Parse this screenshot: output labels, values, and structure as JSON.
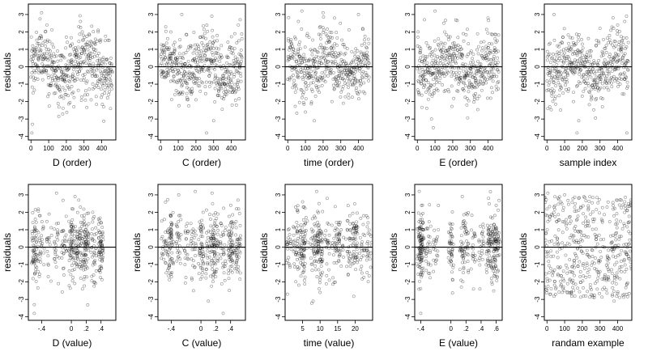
{
  "chart_data": [
    {
      "type": "scatter",
      "xlabel": "D (order)",
      "ylabel": "residuals",
      "xlim": [
        -15,
        480
      ],
      "ylim": [
        -4.2,
        3.6
      ],
      "xticks": [
        0,
        100,
        200,
        300,
        400
      ],
      "yticks": [
        -4,
        -3,
        -2,
        -1,
        0,
        1,
        2,
        3
      ],
      "hline": 0,
      "n": 460,
      "pattern": "order",
      "y_range": [
        -3.8,
        3.2
      ],
      "x": [
        5,
        8,
        12,
        60,
        90,
        120,
        150,
        180,
        200,
        230,
        250,
        270,
        280,
        290,
        300,
        320,
        330,
        340,
        360,
        380,
        400,
        420,
        440,
        450
      ],
      "y": [
        -3.8,
        -3.3,
        -1.5,
        3.1,
        2.4,
        1.3,
        0.9,
        -1.2,
        1.7,
        0.4,
        -0.8,
        2.3,
        2.6,
        2.0,
        0.3,
        -1.6,
        1.2,
        -1.9,
        0.6,
        2.1,
        -0.5,
        1.5,
        -1.1,
        -2.4
      ]
    },
    {
      "type": "scatter",
      "xlabel": "C (order)",
      "ylabel": "residuals",
      "xlim": [
        -15,
        480
      ],
      "ylim": [
        -4.2,
        3.6
      ],
      "xticks": [
        0,
        100,
        200,
        300,
        400
      ],
      "yticks": [
        -4,
        -3,
        -2,
        -1,
        0,
        1,
        2,
        3
      ],
      "hline": 0,
      "n": 460,
      "pattern": "order",
      "y_range": [
        -3.8,
        3.2
      ],
      "x": [
        5,
        20,
        80,
        120,
        150,
        200,
        230,
        260,
        290,
        300,
        320,
        340,
        360,
        400,
        420,
        440,
        450,
        460
      ],
      "y": [
        0.2,
        -0.6,
        1.4,
        3.0,
        -1.2,
        -1.9,
        0.9,
        -3.8,
        2.9,
        -3.1,
        1.8,
        0.5,
        -1.7,
        0.8,
        1.9,
        2.4,
        2.7,
        1.6
      ]
    },
    {
      "type": "scatter",
      "xlabel": "time (order)",
      "ylabel": "residuals",
      "xlim": [
        -15,
        480
      ],
      "ylim": [
        -4.2,
        3.6
      ],
      "xticks": [
        0,
        100,
        200,
        300,
        400
      ],
      "yticks": [
        -4,
        -3,
        -2,
        -1,
        0,
        1,
        2,
        3
      ],
      "hline": 0,
      "n": 460,
      "pattern": "order",
      "y_range": [
        -3.8,
        3.2
      ],
      "x": [
        20,
        40,
        60,
        80,
        100,
        150,
        180,
        200,
        250,
        280,
        300,
        320,
        350,
        380,
        400,
        420,
        440,
        460
      ],
      "y": [
        -0.6,
        1.7,
        2.6,
        3.2,
        -2.6,
        -3.1,
        1.1,
        3.1,
        -2.0,
        -1.1,
        0.2,
        0.7,
        -0.3,
        0.6,
        3.0,
        -0.4,
        0.4,
        -0.6
      ]
    },
    {
      "type": "scatter",
      "xlabel": "E (order)",
      "ylabel": "residuals",
      "xlim": [
        -15,
        480
      ],
      "ylim": [
        -4.2,
        3.6
      ],
      "xticks": [
        0,
        100,
        200,
        300,
        400
      ],
      "yticks": [
        -4,
        -3,
        -2,
        -1,
        0,
        1,
        2,
        3
      ],
      "hline": 0,
      "n": 460,
      "pattern": "order",
      "y_range": [
        -3.8,
        3.2
      ],
      "x": [
        10,
        40,
        60,
        80,
        90,
        100,
        150,
        200,
        230,
        260,
        280,
        300,
        330,
        360,
        400,
        420,
        440,
        460
      ],
      "y": [
        -1.6,
        2.7,
        1.2,
        -3.0,
        -3.5,
        3.2,
        2.5,
        0.3,
        -1.4,
        1.9,
        -2.2,
        0.8,
        -0.9,
        1.4,
        2.8,
        -1.2,
        1.6,
        -0.3
      ]
    },
    {
      "type": "scatter",
      "xlabel": "sample index",
      "ylabel": "residuals",
      "xlim": [
        -15,
        480
      ],
      "ylim": [
        -4.2,
        3.6
      ],
      "xticks": [
        0,
        100,
        200,
        300,
        400
      ],
      "yticks": [
        -4,
        -3,
        -2,
        -1,
        0,
        1,
        2,
        3
      ],
      "hline": 0,
      "n": 460,
      "pattern": "order",
      "y_range": [
        -3.8,
        3.2
      ],
      "x": [
        5,
        40,
        90,
        120,
        150,
        170,
        180,
        200,
        250,
        280,
        300,
        340,
        380,
        400,
        420,
        440,
        450,
        460
      ],
      "y": [
        -2.4,
        3.0,
        1.7,
        -1.4,
        -2.0,
        -3.8,
        -3.1,
        1.3,
        0.9,
        -0.6,
        2.2,
        -1.2,
        0.5,
        2.4,
        1.1,
        2.6,
        2.9,
        0.3
      ]
    },
    {
      "type": "scatter",
      "xlabel": "D (value)",
      "ylabel": "residuals",
      "xlim": [
        -0.58,
        0.6
      ],
      "ylim": [
        -4.2,
        3.6
      ],
      "xticks": [
        -0.4,
        0.0,
        0.2,
        0.4
      ],
      "yticks": [
        -4,
        -3,
        -2,
        -1,
        0,
        1,
        2,
        3
      ],
      "hline": 0,
      "n": 460,
      "pattern": "value",
      "y_range": [
        -3.8,
        3.2
      ],
      "x": [
        -0.5,
        -0.5,
        -0.45,
        -0.3,
        -0.2,
        -0.1,
        0.0,
        0.05,
        0.1,
        0.15,
        0.2,
        0.3,
        0.4
      ],
      "y": [
        -3.8,
        -3.3,
        -1.4,
        1.9,
        3.1,
        -1.6,
        1.4,
        2.9,
        2.7,
        -2.4,
        1.0,
        -1.6,
        0.6
      ]
    },
    {
      "type": "scatter",
      "xlabel": "C (value)",
      "ylabel": "residuals",
      "xlim": [
        -0.58,
        0.6
      ],
      "ylim": [
        -4.2,
        3.6
      ],
      "xticks": [
        -0.4,
        0.0,
        0.2,
        0.4
      ],
      "yticks": [
        -4,
        -3,
        -2,
        -1,
        0,
        1,
        2,
        3
      ],
      "hline": 0,
      "n": 460,
      "pattern": "value",
      "y_range": [
        -3.8,
        3.2
      ],
      "x": [
        -0.5,
        -0.42,
        -0.3,
        -0.2,
        -0.1,
        0.0,
        0.1,
        0.15,
        0.2,
        0.3,
        0.4,
        0.48,
        0.5
      ],
      "y": [
        0.3,
        -0.8,
        3.0,
        1.2,
        -2.5,
        0.9,
        -3.1,
        3.1,
        -1.7,
        -3.8,
        0.4,
        2.2,
        2.7
      ]
    },
    {
      "type": "scatter",
      "xlabel": "time (value)",
      "ylabel": "residuals",
      "xlim": [
        0,
        25
      ],
      "ylim": [
        -4.2,
        3.6
      ],
      "xticks": [
        5,
        10,
        15,
        20
      ],
      "yticks": [
        -4,
        -3,
        -2,
        -1,
        0,
        1,
        2,
        3
      ],
      "hline": 0,
      "n": 460,
      "pattern": "value",
      "y_range": [
        -3.8,
        3.2
      ],
      "x": [
        1,
        3,
        4,
        5,
        6,
        8,
        9,
        10,
        12,
        14,
        16,
        18,
        20,
        22,
        24
      ],
      "y": [
        -0.6,
        2.3,
        -1.2,
        2.6,
        1.7,
        -3.1,
        3.2,
        -2.6,
        2.8,
        -0.9,
        1.0,
        -1.6,
        0.6,
        0.3,
        -0.5
      ]
    },
    {
      "type": "scatter",
      "xlabel": "E (value)",
      "ylabel": "residuals",
      "xlim": [
        -0.48,
        0.68
      ],
      "ylim": [
        -4.2,
        3.6
      ],
      "xticks": [
        -0.4,
        0.0,
        0.2,
        0.4,
        0.6
      ],
      "yticks": [
        -4,
        -3,
        -2,
        -1,
        0,
        1,
        2,
        3
      ],
      "hline": 0,
      "n": 460,
      "pattern": "value",
      "y_range": [
        -3.8,
        3.2
      ],
      "x": [
        -0.42,
        -0.4,
        -0.39,
        -0.38,
        -0.3,
        -0.2,
        0.0,
        0.15,
        0.3,
        0.5,
        0.52,
        0.55,
        0.6,
        0.62
      ],
      "y": [
        3.2,
        -3.8,
        2.4,
        -1.6,
        -1.0,
        0.4,
        0.2,
        2.9,
        -2.4,
        2.8,
        -0.8,
        0.9,
        2.4,
        -1.4
      ]
    },
    {
      "type": "scatter",
      "xlabel": "randam example",
      "ylabel": "residuals",
      "xlim": [
        -15,
        480
      ],
      "ylim": [
        -4.2,
        3.6
      ],
      "xticks": [
        0,
        100,
        200,
        300,
        400
      ],
      "yticks": [
        -4,
        -3,
        -2,
        -1,
        0,
        1,
        2,
        3
      ],
      "hline": 0,
      "n": 460,
      "pattern": "random",
      "y_range": [
        -3.8,
        3.2
      ],
      "x": [
        5,
        20,
        40,
        70,
        100,
        140,
        180,
        220,
        260,
        300,
        340,
        380,
        420,
        450,
        460
      ],
      "y": [
        3.1,
        -2.7,
        2.3,
        -1.2,
        3.0,
        -2.0,
        2.8,
        -2.8,
        1.6,
        -1.4,
        2.3,
        -3.1,
        2.7,
        -0.4,
        1.4
      ]
    }
  ]
}
